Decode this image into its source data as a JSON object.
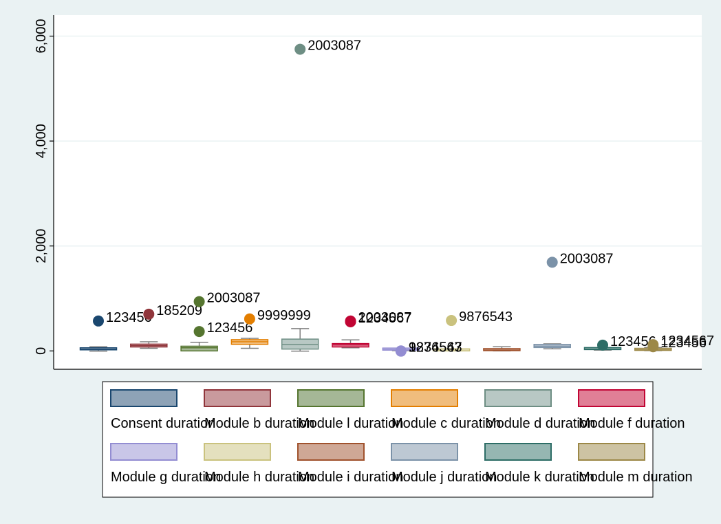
{
  "chart_data": {
    "type": "box",
    "title": "",
    "xlabel": "",
    "ylabel": "",
    "ylim": [
      -350,
      6400
    ],
    "yticks": [
      0,
      2000,
      4000,
      6000
    ],
    "ytick_labels": [
      "0",
      "2,000",
      "4,000",
      "6,000"
    ],
    "grid": true,
    "legend_position": "bottom",
    "series": [
      {
        "name": "Consent duration",
        "color": "#1a476f",
        "fill": "#8ea3b7",
        "box": {
          "min": -5,
          "q1": 20,
          "median": 30,
          "q3": 45,
          "max": 80
        },
        "outliers": [
          {
            "value": 570,
            "label": "123456"
          }
        ]
      },
      {
        "name": "Module b duration",
        "color": "#90353b",
        "fill": "#c99a9d",
        "box": {
          "min": 50,
          "q1": 75,
          "median": 100,
          "q3": 130,
          "max": 175
        },
        "outliers": [
          {
            "value": 700,
            "label": "185209"
          }
        ]
      },
      {
        "name": "Module l duration",
        "color": "#55752f",
        "fill": "#a5b796",
        "box": {
          "min": 0,
          "q1": 0,
          "median": 60,
          "q3": 90,
          "max": 165
        },
        "outliers": [
          {
            "value": 940,
            "label": "2003087"
          },
          {
            "value": 370,
            "label": "123456"
          }
        ]
      },
      {
        "name": "Module c duration",
        "color": "#e37e00",
        "fill": "#f0bd7d",
        "box": {
          "min": 50,
          "q1": 125,
          "median": 175,
          "q3": 215,
          "max": 240
        },
        "outliers": [
          {
            "value": 610,
            "label": "9999999"
          }
        ]
      },
      {
        "name": "Module d duration",
        "color": "#6e8e84",
        "fill": "#b8c8c4",
        "box": {
          "min": -5,
          "q1": 35,
          "median": 120,
          "q3": 225,
          "max": 425
        },
        "outliers": [
          {
            "value": 5750,
            "label": "2003087"
          }
        ]
      },
      {
        "name": "Module f duration",
        "color": "#c10534",
        "fill": "#e07f96",
        "box": {
          "min": 60,
          "q1": 75,
          "median": 115,
          "q3": 140,
          "max": 210
        },
        "outliers": [
          {
            "value": 570,
            "label": "2003087"
          },
          {
            "value": 555,
            "label": "1234567"
          }
        ]
      },
      {
        "name": "Module g duration",
        "color": "#938dd2",
        "fill": "#c9c6e8",
        "box": {
          "min": 5,
          "q1": 15,
          "median": 25,
          "q3": 35,
          "max": 45
        },
        "outliers": [
          {
            "value": 0,
            "label": "9876543"
          },
          {
            "value": -5,
            "label": "1234567"
          }
        ]
      },
      {
        "name": "Module h duration",
        "color": "#cac27e",
        "fill": "#e4e0be",
        "box": {
          "min": 0,
          "q1": 0,
          "median": 0,
          "q3": 0,
          "max": 0
        },
        "outliers": [
          {
            "value": 580,
            "label": "9876543"
          }
        ]
      },
      {
        "name": "Module i duration",
        "color": "#a0522d",
        "fill": "#cfa896",
        "box": {
          "min": 0,
          "q1": 5,
          "median": 15,
          "q3": 25,
          "max": 80
        },
        "outliers": []
      },
      {
        "name": "Module j duration",
        "color": "#7b92a8",
        "fill": "#bdc8d3",
        "box": {
          "min": 40,
          "q1": 65,
          "median": 90,
          "q3": 125,
          "max": 135
        },
        "outliers": [
          {
            "value": 1690,
            "label": "2003087"
          }
        ]
      },
      {
        "name": "Module k duration",
        "color": "#2d6d66",
        "fill": "#96b6b2",
        "box": {
          "min": 15,
          "q1": 25,
          "median": 35,
          "q3": 45,
          "max": 55
        },
        "outliers": [
          {
            "value": 110,
            "label": "123456"
          }
        ]
      },
      {
        "name": "Module m duration",
        "color": "#9c8847",
        "fill": "#cdc3a3",
        "box": {
          "min": 5,
          "q1": 10,
          "median": 20,
          "q3": 35,
          "max": 65
        },
        "outliers": [
          {
            "value": 120,
            "label": "1234567"
          },
          {
            "value": 80,
            "label": "123456"
          }
        ]
      }
    ]
  }
}
